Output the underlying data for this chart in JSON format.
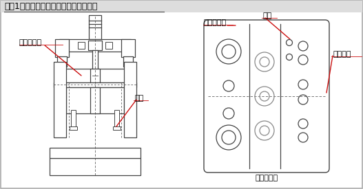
{
  "title": "『図1』固定ストリッパ構造の穴抜き型",
  "title_alt": "[図1]固定ストリッパ構造の穴抜き型",
  "bg_color": "#ffffff",
  "line_color": "#444444",
  "red_color": "#cc1111",
  "gray_color": "#888888",
  "label_stripper_left": "ストリッパ",
  "label_pin_left": "ピン",
  "label_stripper_right": "ストリッパ",
  "label_pin_right": "ピン",
  "label_material": "被加工材",
  "label_bottom": "下型平面図",
  "title_fontsize": 9.0,
  "label_fontsize": 8.0
}
